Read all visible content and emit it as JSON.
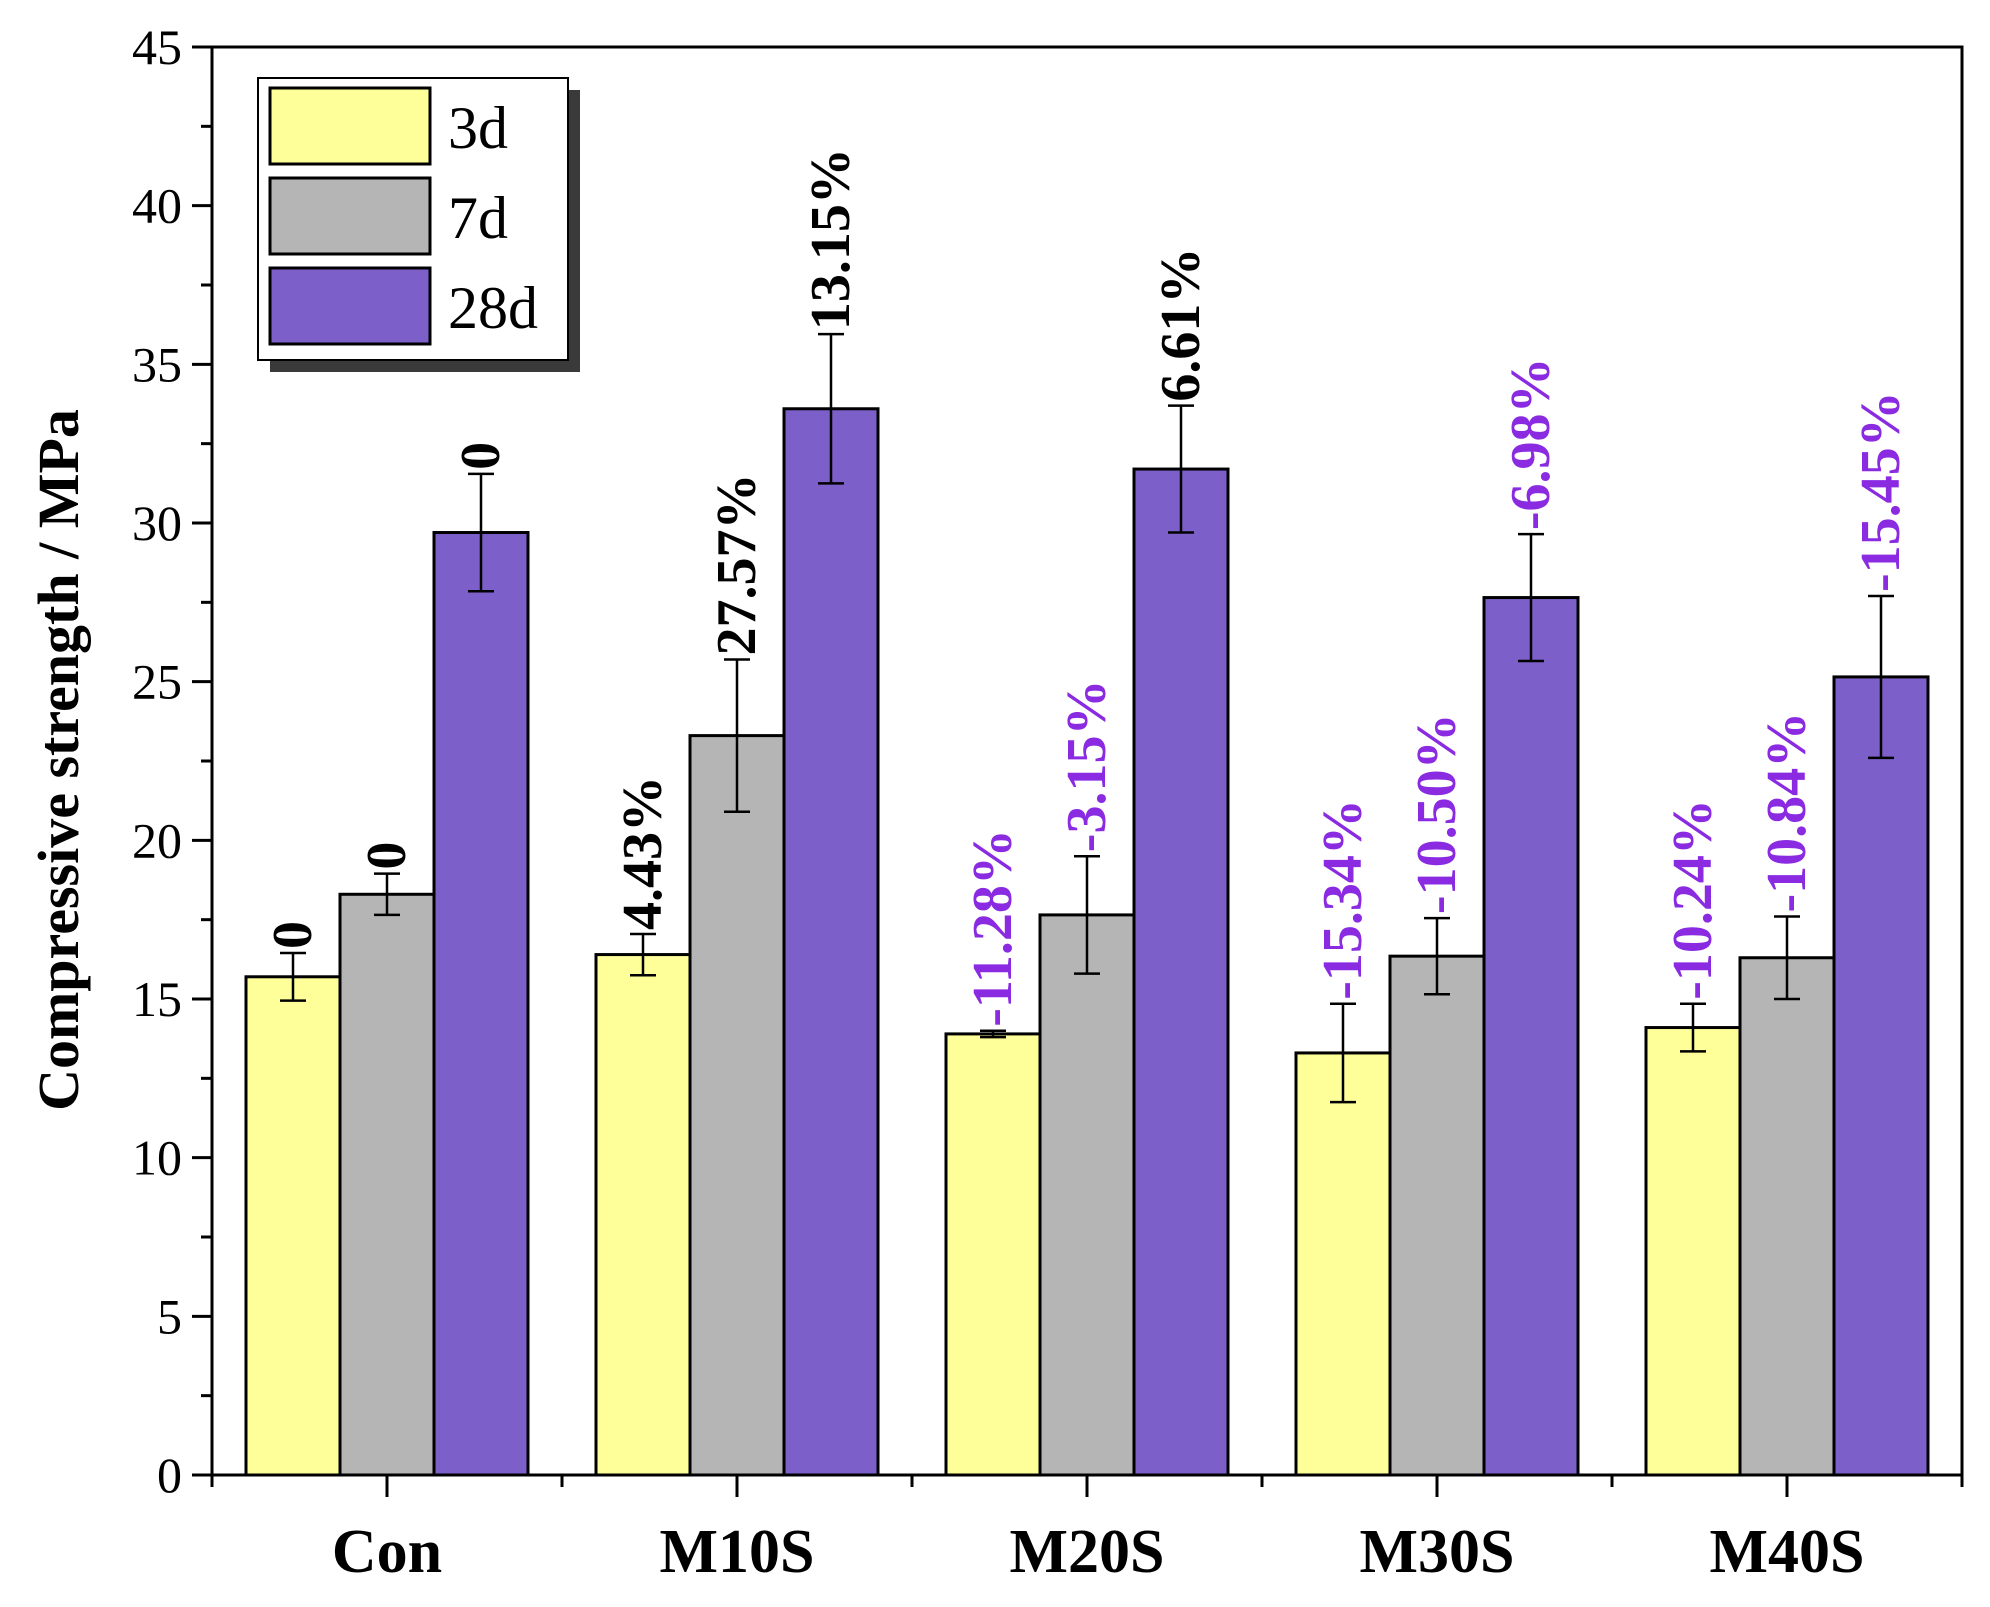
{
  "chart_data": {
    "type": "bar",
    "title": "",
    "xlabel": "",
    "ylabel": "Compressive strength / MPa",
    "ylim": [
      0,
      45
    ],
    "yticks": [
      "0",
      "5",
      "10",
      "15",
      "20",
      "25",
      "30",
      "35",
      "40",
      "45"
    ],
    "categories": [
      "Con",
      "M10S",
      "M20S",
      "M30S",
      "M40S"
    ],
    "grid": false,
    "legend_position": "top-left",
    "series": [
      {
        "name": "3d",
        "color": "#ffff99",
        "values": [
          15.7,
          16.4,
          13.9,
          13.3,
          14.1
        ],
        "errors": [
          0.75,
          0.65,
          0.1,
          1.55,
          0.75
        ],
        "labels": [
          "0",
          "4.43%",
          "-11.28%",
          "-15.34%",
          "-10.24%"
        ]
      },
      {
        "name": "7d",
        "color": "#b5b5b5",
        "values": [
          18.3,
          23.3,
          17.65,
          16.35,
          16.3
        ],
        "errors": [
          0.65,
          2.4,
          1.85,
          1.2,
          1.3
        ],
        "labels": [
          "0",
          "27.57%",
          "-3.15%",
          "-10.50%",
          "-10.84%"
        ]
      },
      {
        "name": "28d",
        "color": "#7d5fc9",
        "values": [
          29.7,
          33.6,
          31.7,
          27.65,
          25.15
        ],
        "errors": [
          1.85,
          2.35,
          2.0,
          2.0,
          2.55
        ],
        "labels": [
          "0",
          "13.15%",
          "6.61%",
          "-6.98%",
          "-15.45%"
        ]
      }
    ],
    "label_colors": {
      "positive": "#000000",
      "negative": "#8a2be2"
    }
  }
}
